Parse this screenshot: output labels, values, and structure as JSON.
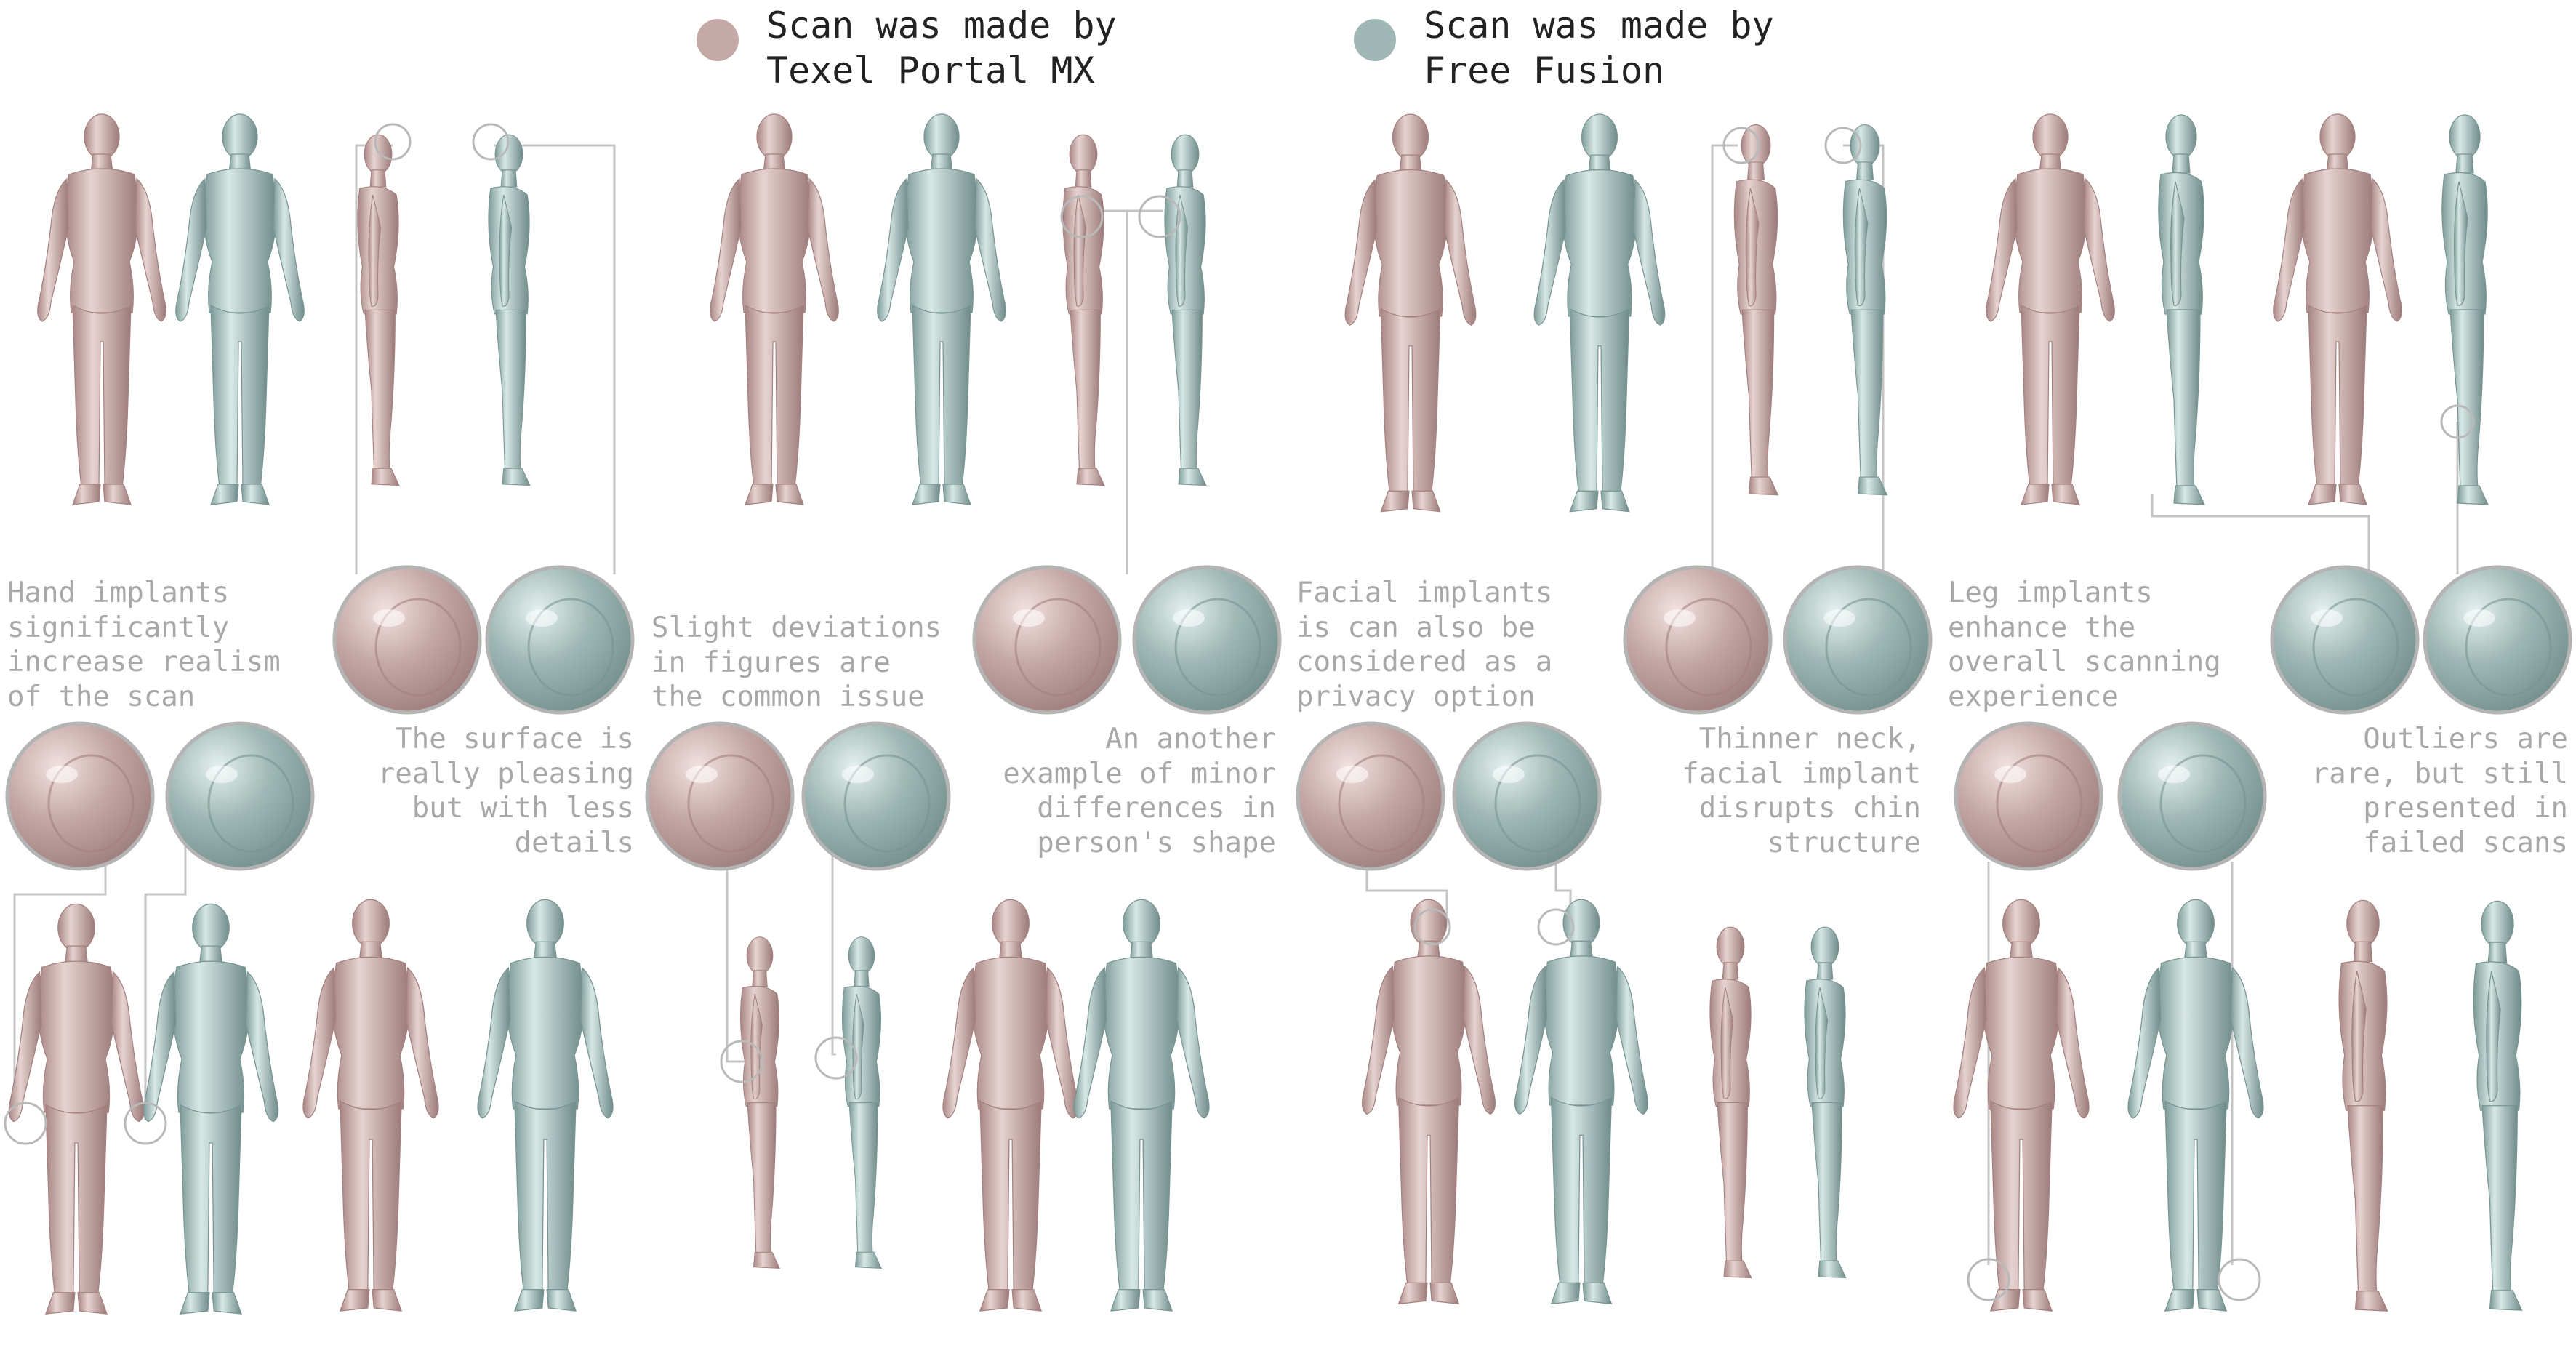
{
  "colors": {
    "texel": "#c5a9a7",
    "fusion": "#9fb8b5",
    "texel_shade": "#a4817f",
    "fusion_shade": "#789593",
    "leader": "#c4c4c4"
  },
  "legend": [
    {
      "line1": "Scan was made by",
      "line2": "Texel Portal MX"
    },
    {
      "line1": "Scan was made by",
      "line2": "Free Fusion"
    }
  ],
  "annotations": {
    "hand_implants": "Hand implants\nsignificantly\nincrease realism\nof the scan",
    "surface_pleasing": "The surface is\nreally pleasing\nbut with less\ndetails",
    "slight_deviations": "Slight deviations\nin figures are\nthe common issue",
    "another_example": "An another\nexample of minor\ndifferences in\nperson's shape",
    "facial_implants": "Facial implants\nis can also be\nconsidered as a\nprivacy option",
    "thinner_neck": "Thinner neck,\nfacial implant\ndisrupts chin\nstructure",
    "leg_implants": "Leg implants\nenhance the\noverall scanning\nexperience",
    "outliers": "Outliers are\nrare, but still\npresented in\nfailed scans"
  },
  "detail_icons": [
    "head-detail-icon",
    "chest-detail-icon",
    "ear-detail-icon",
    "hand-detail-icon",
    "hip-detail-icon",
    "face-detail-icon",
    "foot-detail-icon",
    "leg-outlier-icon"
  ]
}
